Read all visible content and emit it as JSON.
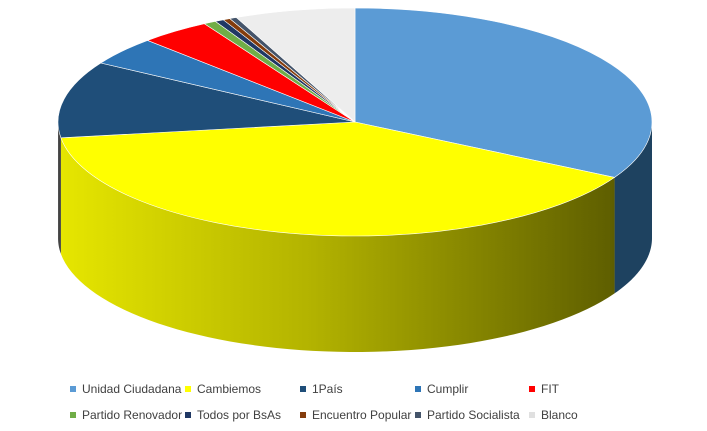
{
  "chart_data": {
    "type": "pie",
    "style": "3d",
    "legend_position": "bottom",
    "series": [
      {
        "name": "Unidad Ciudadana",
        "value": 34.4,
        "color": "#5B9BD5"
      },
      {
        "name": "Cambiemos",
        "value": 41.3,
        "color": "#FFFF00"
      },
      {
        "name": "1País",
        "value": 11.3,
        "color": "#1F4E79"
      },
      {
        "name": "Cumplir",
        "value": 4.2,
        "color": "#2E75B6"
      },
      {
        "name": "FIT",
        "value": 4.0,
        "color": "#FF0000"
      },
      {
        "name": "Partido Renovador",
        "value": 0.7,
        "color": "#70AD47"
      },
      {
        "name": "Todos por BsAs",
        "value": 0.5,
        "color": "#203864"
      },
      {
        "name": "Encuentro Popular",
        "value": 0.4,
        "color": "#843C0C"
      },
      {
        "name": "Partido Socialista",
        "value": 0.4,
        "color": "#44546A"
      },
      {
        "name": "Blanco",
        "value": 6.8,
        "color": "#EDEDED"
      }
    ]
  }
}
